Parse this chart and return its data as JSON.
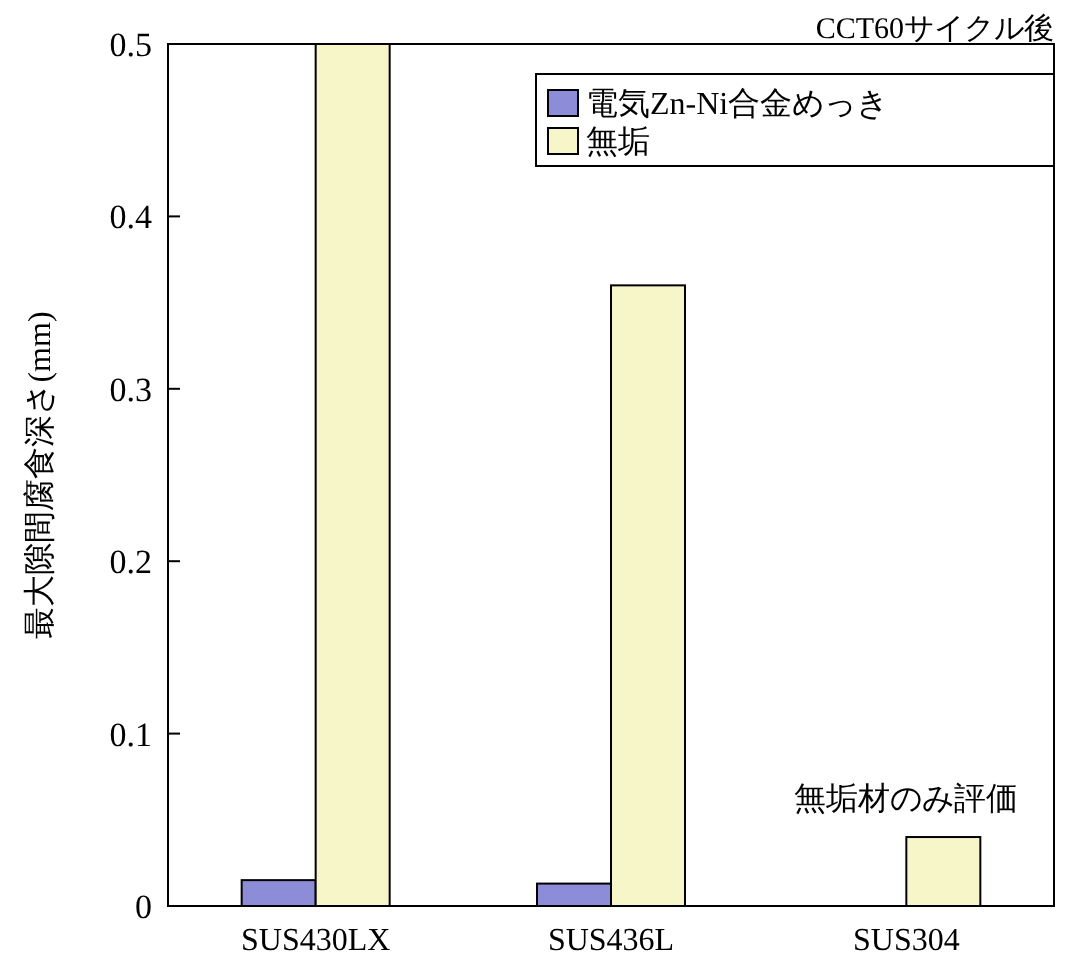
{
  "chart_data": {
    "type": "bar",
    "subtitle": "CCT60サイクル後",
    "ylabel": "最大隙間腐食深さ(mm)",
    "categories": [
      "SUS430LX",
      "SUS436L",
      "SUS304"
    ],
    "series": [
      {
        "name": "電気Zn-Ni合金めっき",
        "color": "#8c8cd8",
        "values": [
          0.015,
          0.013,
          null
        ]
      },
      {
        "name": "無垢",
        "color": "#f6f6c8",
        "values": [
          0.5,
          0.36,
          0.04
        ]
      }
    ],
    "ylim": [
      0,
      0.5
    ],
    "yticks": [
      0,
      0.1,
      0.2,
      0.3,
      0.4,
      0.5
    ],
    "legend": "top right",
    "annotations": [
      {
        "text": "無垢材のみ評価",
        "x": "SUS304",
        "y": 0.04
      }
    ]
  }
}
